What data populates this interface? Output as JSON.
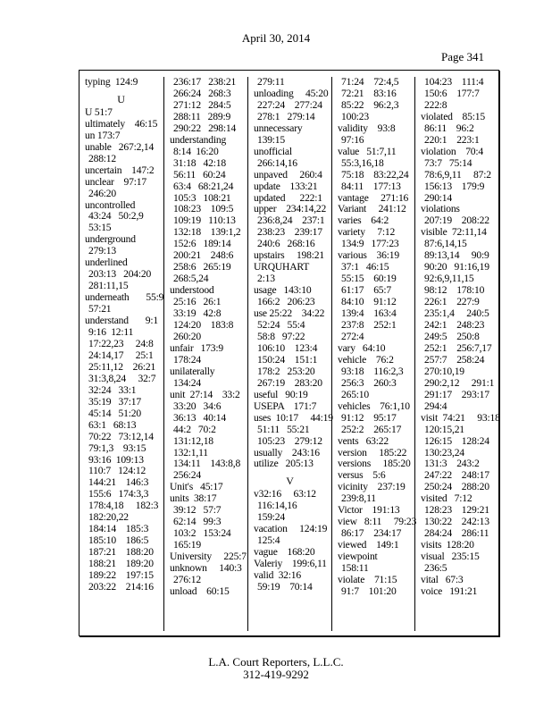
{
  "header": {
    "date": "April 30, 2014",
    "page": "Page 341"
  },
  "footer": {
    "company": "L.A. Court Reporters, L.L.C.",
    "phone": "312-419-9292"
  },
  "columns": [
    [
      {
        "k": "t",
        "s": "typing  124:9"
      },
      {
        "k": "h",
        "s": "U"
      },
      {
        "k": "t",
        "s": "U 51:7"
      },
      {
        "k": "t",
        "s": "ultimately    46:15"
      },
      {
        "k": "t",
        "s": "un 173:7"
      },
      {
        "k": "t",
        "s": "unable   267:2,14"
      },
      {
        "k": "c",
        "s": "288:12"
      },
      {
        "k": "t",
        "s": "uncertain    147:2"
      },
      {
        "k": "t",
        "s": "unclear    97:17"
      },
      {
        "k": "c",
        "s": "246:20"
      },
      {
        "k": "t",
        "s": "uncontrolled"
      },
      {
        "k": "c",
        "s": "43:24   50:2,9"
      },
      {
        "k": "c",
        "s": "53:15"
      },
      {
        "k": "t",
        "s": "underground"
      },
      {
        "k": "c",
        "s": "279:13"
      },
      {
        "k": "t",
        "s": "underlined"
      },
      {
        "k": "c",
        "s": "203:13   204:20"
      },
      {
        "k": "c",
        "s": "281:11,15"
      },
      {
        "k": "t",
        "s": "underneath       55:9"
      },
      {
        "k": "c",
        "s": "57:21"
      },
      {
        "k": "t",
        "s": "understand       9:1"
      },
      {
        "k": "c",
        "s": "9:16  12:11"
      },
      {
        "k": "c",
        "s": "17:22,23     24:8"
      },
      {
        "k": "c",
        "s": "24:14,17     25:1"
      },
      {
        "k": "c",
        "s": "25:11,12    26:21"
      },
      {
        "k": "c",
        "s": "31:3,8,24     32:7"
      },
      {
        "k": "c",
        "s": "32:24   33:1"
      },
      {
        "k": "c",
        "s": "35:19   37:17"
      },
      {
        "k": "c",
        "s": "45:14   51:20"
      },
      {
        "k": "c",
        "s": "63:1   68:13"
      },
      {
        "k": "c",
        "s": "70:22   73:12,14"
      },
      {
        "k": "c",
        "s": "79:1,3    93:15"
      },
      {
        "k": "c",
        "s": "93:16  109:13"
      },
      {
        "k": "c",
        "s": "110:7   124:12"
      },
      {
        "k": "c",
        "s": "144:21    146:3"
      },
      {
        "k": "c",
        "s": "155:6   174:3,3"
      },
      {
        "k": "c",
        "s": "178:4,18     182:3"
      },
      {
        "k": "c",
        "s": "182:20,22"
      },
      {
        "k": "c",
        "s": "184:14    185:3"
      },
      {
        "k": "c",
        "s": "185:10    186:5"
      },
      {
        "k": "c",
        "s": "187:21    188:20"
      },
      {
        "k": "c",
        "s": "188:21    189:20"
      },
      {
        "k": "c",
        "s": "189:22    197:15"
      },
      {
        "k": "c",
        "s": "203:22    214:16"
      }
    ],
    [
      {
        "k": "c",
        "s": "236:17   238:21"
      },
      {
        "k": "c",
        "s": "266:24   268:3"
      },
      {
        "k": "c",
        "s": "271:12   284:5"
      },
      {
        "k": "c",
        "s": "288:11   289:9"
      },
      {
        "k": "c",
        "s": "290:22   298:14"
      },
      {
        "k": "t",
        "s": "understanding"
      },
      {
        "k": "c",
        "s": "8:14  16:20"
      },
      {
        "k": "c",
        "s": "31:18   42:18"
      },
      {
        "k": "c",
        "s": "56:11   60:24"
      },
      {
        "k": "c",
        "s": "63:4   68:21,24"
      },
      {
        "k": "c",
        "s": "105:3   108:21"
      },
      {
        "k": "c",
        "s": "108:23    109:5"
      },
      {
        "k": "c",
        "s": "109:19   110:13"
      },
      {
        "k": "c",
        "s": "132:18    139:1,2"
      },
      {
        "k": "c",
        "s": "152:6   189:14"
      },
      {
        "k": "c",
        "s": "200:21    248:6"
      },
      {
        "k": "c",
        "s": "258:6   265:19"
      },
      {
        "k": "c",
        "s": "268:5,24"
      },
      {
        "k": "t",
        "s": "understood"
      },
      {
        "k": "c",
        "s": "25:16   26:1"
      },
      {
        "k": "c",
        "s": "33:19   42:8"
      },
      {
        "k": "c",
        "s": "124:20    183:8"
      },
      {
        "k": "c",
        "s": "260:20"
      },
      {
        "k": "t",
        "s": "unfair   173:9"
      },
      {
        "k": "c",
        "s": "178:24"
      },
      {
        "k": "t",
        "s": "unilaterally"
      },
      {
        "k": "c",
        "s": "134:24"
      },
      {
        "k": "t",
        "s": "unit  27:14    33:2"
      },
      {
        "k": "c",
        "s": "33:20   34:6"
      },
      {
        "k": "c",
        "s": "36:13   40:14"
      },
      {
        "k": "c",
        "s": "44:2   70:2"
      },
      {
        "k": "c",
        "s": "131:12,18"
      },
      {
        "k": "c",
        "s": "132:1,11"
      },
      {
        "k": "c",
        "s": "134:11    143:8,8"
      },
      {
        "k": "c",
        "s": "256:24"
      },
      {
        "k": "t",
        "s": "Unit's   45:17"
      },
      {
        "k": "t",
        "s": "units  38:17"
      },
      {
        "k": "c",
        "s": "39:12   57:7"
      },
      {
        "k": "c",
        "s": "62:14   99:3"
      },
      {
        "k": "c",
        "s": "103:2   153:24"
      },
      {
        "k": "c",
        "s": "165:19"
      },
      {
        "k": "t",
        "s": "University     225:7"
      },
      {
        "k": "t",
        "s": "unknown     140:3"
      },
      {
        "k": "c",
        "s": "276:12"
      },
      {
        "k": "t",
        "s": "unload    60:15"
      }
    ],
    [
      {
        "k": "c",
        "s": "279:11"
      },
      {
        "k": "t",
        "s": "unloading     45:20"
      },
      {
        "k": "c",
        "s": "227:24    277:24"
      },
      {
        "k": "c",
        "s": "278:1   279:14"
      },
      {
        "k": "t",
        "s": "unnecessary"
      },
      {
        "k": "c",
        "s": "139:15"
      },
      {
        "k": "t",
        "s": "unofficial"
      },
      {
        "k": "c",
        "s": "266:14,16"
      },
      {
        "k": "t",
        "s": "unpaved     260:4"
      },
      {
        "k": "t",
        "s": "update    133:21"
      },
      {
        "k": "t",
        "s": "updated      222:1"
      },
      {
        "k": "t",
        "s": "upper    234:14,22"
      },
      {
        "k": "c",
        "s": "236:8,24    237:1"
      },
      {
        "k": "c",
        "s": "238:23    239:17"
      },
      {
        "k": "c",
        "s": "240:6   268:16"
      },
      {
        "k": "t",
        "s": "upstairs     198:21"
      },
      {
        "k": "t",
        "s": "URQUHART"
      },
      {
        "k": "c",
        "s": "2:13"
      },
      {
        "k": "t",
        "s": "usage   143:10"
      },
      {
        "k": "c",
        "s": "166:2   206:23"
      },
      {
        "k": "t",
        "s": "use 25:22    34:22"
      },
      {
        "k": "c",
        "s": "52:24   55:4"
      },
      {
        "k": "c",
        "s": "58:8   97:22"
      },
      {
        "k": "c",
        "s": "106:10    123:4"
      },
      {
        "k": "c",
        "s": "150:24    151:1"
      },
      {
        "k": "c",
        "s": "178:2   253:20"
      },
      {
        "k": "c",
        "s": "267:19    283:20"
      },
      {
        "k": "t",
        "s": "useful   90:19"
      },
      {
        "k": "t",
        "s": "USEPA    171:7"
      },
      {
        "k": "t",
        "s": "uses  10:17     44:19"
      },
      {
        "k": "c",
        "s": "51:11   55:21"
      },
      {
        "k": "c",
        "s": "105:23    279:12"
      },
      {
        "k": "t",
        "s": "usually    243:16"
      },
      {
        "k": "t",
        "s": "utilize   205:13"
      },
      {
        "k": "h",
        "s": "V"
      },
      {
        "k": "t",
        "s": "v32:16     63:12"
      },
      {
        "k": "c",
        "s": "116:14,16"
      },
      {
        "k": "c",
        "s": "159:24"
      },
      {
        "k": "t",
        "s": "vacation     124:19"
      },
      {
        "k": "c",
        "s": "125:4"
      },
      {
        "k": "t",
        "s": "vague    168:20"
      },
      {
        "k": "t",
        "s": "Valeriy    199:6,11"
      },
      {
        "k": "t",
        "s": "valid  32:16"
      },
      {
        "k": "c",
        "s": "59:19    70:14"
      }
    ],
    [
      {
        "k": "c",
        "s": "71:24    72:4,5"
      },
      {
        "k": "c",
        "s": "72:21    83:16"
      },
      {
        "k": "c",
        "s": "85:22    96:2,3"
      },
      {
        "k": "c",
        "s": "100:23"
      },
      {
        "k": "t",
        "s": "validity    93:8"
      },
      {
        "k": "c",
        "s": "97:16"
      },
      {
        "k": "t",
        "s": "value   51:7,11"
      },
      {
        "k": "c",
        "s": "55:3,16,18"
      },
      {
        "k": "c",
        "s": "75:18    83:22,24"
      },
      {
        "k": "c",
        "s": "84:11    177:13"
      },
      {
        "k": "t",
        "s": "vantage     271:16"
      },
      {
        "k": "t",
        "s": "Variant     241:12"
      },
      {
        "k": "t",
        "s": "varies    64:2"
      },
      {
        "k": "t",
        "s": "variety     7:12"
      },
      {
        "k": "c",
        "s": "134:9   177:23"
      },
      {
        "k": "t",
        "s": "various    36:19"
      },
      {
        "k": "c",
        "s": "37:1   46:15"
      },
      {
        "k": "c",
        "s": "55:15    60:19"
      },
      {
        "k": "c",
        "s": "61:17    65:7"
      },
      {
        "k": "c",
        "s": "84:10    91:12"
      },
      {
        "k": "c",
        "s": "139:4    163:4"
      },
      {
        "k": "c",
        "s": "237:8    252:1"
      },
      {
        "k": "c",
        "s": "272:4"
      },
      {
        "k": "t",
        "s": "vary   64:10"
      },
      {
        "k": "t",
        "s": "vehicle    76:2"
      },
      {
        "k": "c",
        "s": "93:18    116:2,3"
      },
      {
        "k": "c",
        "s": "256:3    260:3"
      },
      {
        "k": "c",
        "s": "265:10"
      },
      {
        "k": "t",
        "s": "vehicles    76:1,10"
      },
      {
        "k": "c",
        "s": "91:12    95:17"
      },
      {
        "k": "c",
        "s": "252:2    265:17"
      },
      {
        "k": "t",
        "s": "vents   63:22"
      },
      {
        "k": "t",
        "s": "version     185:22"
      },
      {
        "k": "t",
        "s": "versions     185:20"
      },
      {
        "k": "t",
        "s": "versus    5:6"
      },
      {
        "k": "t",
        "s": "vicinity    237:19"
      },
      {
        "k": "c",
        "s": "239:8,11"
      },
      {
        "k": "t",
        "s": "Victor    191:13"
      },
      {
        "k": "t",
        "s": "view   8:11     79:23"
      },
      {
        "k": "c",
        "s": "86:17    234:17"
      },
      {
        "k": "t",
        "s": "viewed    149:1"
      },
      {
        "k": "t",
        "s": "viewpoint"
      },
      {
        "k": "c",
        "s": "158:11"
      },
      {
        "k": "t",
        "s": "violate    71:15"
      },
      {
        "k": "c",
        "s": "91:7    101:20"
      }
    ],
    [
      {
        "k": "c",
        "s": "104:23    111:4"
      },
      {
        "k": "c",
        "s": "150:6    177:7"
      },
      {
        "k": "c",
        "s": "222:8"
      },
      {
        "k": "t",
        "s": "violated    85:15"
      },
      {
        "k": "c",
        "s": "86:11    96:2"
      },
      {
        "k": "c",
        "s": "220:1    223:1"
      },
      {
        "k": "t",
        "s": "violation    70:4"
      },
      {
        "k": "c",
        "s": "73:7   75:14"
      },
      {
        "k": "c",
        "s": "78:6,9,11     87:2"
      },
      {
        "k": "c",
        "s": "156:13    179:9"
      },
      {
        "k": "c",
        "s": "290:14"
      },
      {
        "k": "t",
        "s": "violations"
      },
      {
        "k": "c",
        "s": "207:19    208:22"
      },
      {
        "k": "t",
        "s": "visible  72:11,14"
      },
      {
        "k": "c",
        "s": "87:6,14,15"
      },
      {
        "k": "c",
        "s": "89:13,14     90:9"
      },
      {
        "k": "c",
        "s": "90:20   91:16,19"
      },
      {
        "k": "c",
        "s": "92:6,9,11,15"
      },
      {
        "k": "c",
        "s": "98:12    178:10"
      },
      {
        "k": "c",
        "s": "226:1    227:9"
      },
      {
        "k": "c",
        "s": "235:1,4     240:5"
      },
      {
        "k": "c",
        "s": "242:1    248:23"
      },
      {
        "k": "c",
        "s": "249:5    250:8"
      },
      {
        "k": "c",
        "s": "252:1    256:7,17"
      },
      {
        "k": "c",
        "s": "257:7    258:24"
      },
      {
        "k": "c",
        "s": "270:10,19"
      },
      {
        "k": "c",
        "s": "290:2,12     291:1"
      },
      {
        "k": "c",
        "s": "291:17    293:17"
      },
      {
        "k": "c",
        "s": "294:4"
      },
      {
        "k": "t",
        "s": "visit  74:21     93:18"
      },
      {
        "k": "c",
        "s": "120:15,21"
      },
      {
        "k": "c",
        "s": "126:15    128:24"
      },
      {
        "k": "c",
        "s": "130:23,24"
      },
      {
        "k": "c",
        "s": "131:3    243:2"
      },
      {
        "k": "c",
        "s": "247:22    248:17"
      },
      {
        "k": "c",
        "s": "250:24    288:20"
      },
      {
        "k": "t",
        "s": "visited   7:12"
      },
      {
        "k": "c",
        "s": "128:23    129:21"
      },
      {
        "k": "c",
        "s": "130:22    242:13"
      },
      {
        "k": "c",
        "s": "284:24    286:11"
      },
      {
        "k": "t",
        "s": "visits  128:20"
      },
      {
        "k": "t",
        "s": "visual   235:15"
      },
      {
        "k": "c",
        "s": "236:5"
      },
      {
        "k": "t",
        "s": "vital   67:3"
      },
      {
        "k": "t",
        "s": "voice   191:21"
      }
    ]
  ]
}
